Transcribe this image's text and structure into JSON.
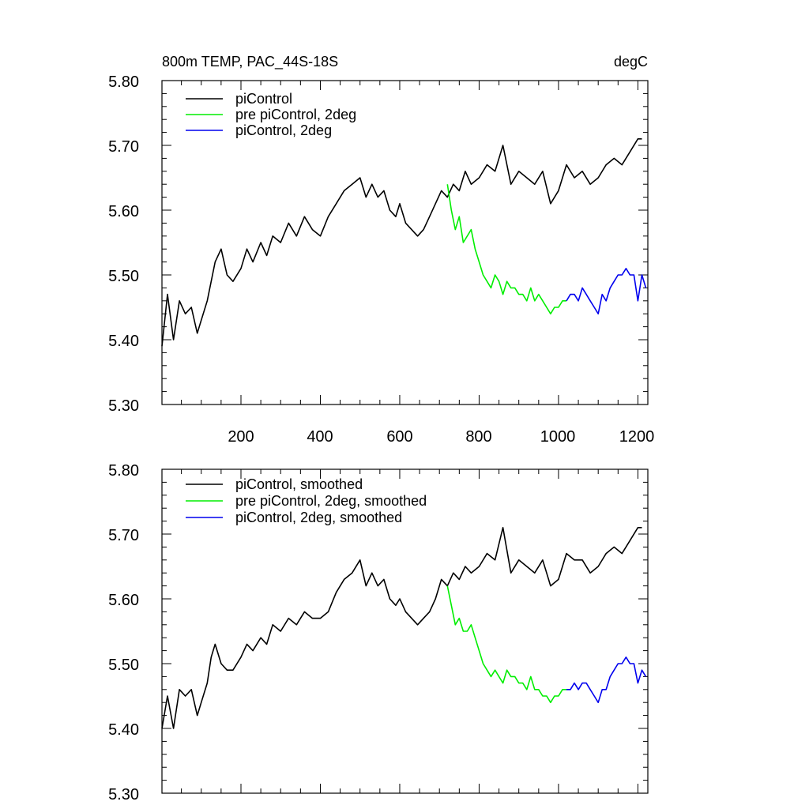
{
  "colors": {
    "series_1": "#000000",
    "series_2": "#00ee00",
    "series_3": "#0000ee"
  },
  "chart_data": [
    {
      "type": "line",
      "title": "800m TEMP, PAC_44S-18S",
      "units": "degC",
      "xlim": [
        1,
        1225
      ],
      "ylim": [
        5.3,
        5.8
      ],
      "y_ticks": [
        "5.30",
        "5.40",
        "5.50",
        "5.60",
        "5.70",
        "5.80"
      ],
      "x_ticks": [
        "200",
        "400",
        "600",
        "800",
        "1000",
        "1200"
      ],
      "legend_position": "top-left",
      "series": [
        {
          "name": "piControl",
          "color": "#000000",
          "x": [
            1,
            15,
            30,
            45,
            60,
            75,
            90,
            100,
            115,
            125,
            135,
            150,
            165,
            180,
            200,
            215,
            230,
            250,
            265,
            280,
            300,
            320,
            340,
            360,
            380,
            400,
            420,
            440,
            460,
            480,
            500,
            515,
            530,
            545,
            560,
            575,
            590,
            600,
            615,
            630,
            645,
            660,
            675,
            690,
            705,
            720,
            735,
            750,
            765,
            780,
            800,
            820,
            840,
            860,
            880,
            900,
            920,
            940,
            960,
            980,
            1000,
            1020,
            1040,
            1060,
            1080,
            1100,
            1120,
            1140,
            1160,
            1180,
            1200,
            1210
          ],
          "y": [
            5.39,
            5.47,
            5.4,
            5.46,
            5.44,
            5.45,
            5.41,
            5.43,
            5.46,
            5.49,
            5.52,
            5.54,
            5.5,
            5.49,
            5.51,
            5.54,
            5.52,
            5.55,
            5.53,
            5.56,
            5.55,
            5.58,
            5.56,
            5.59,
            5.57,
            5.56,
            5.59,
            5.61,
            5.63,
            5.64,
            5.65,
            5.62,
            5.64,
            5.62,
            5.63,
            5.6,
            5.59,
            5.61,
            5.58,
            5.57,
            5.56,
            5.57,
            5.59,
            5.61,
            5.63,
            5.62,
            5.64,
            5.63,
            5.66,
            5.64,
            5.65,
            5.67,
            5.66,
            5.7,
            5.64,
            5.66,
            5.65,
            5.64,
            5.66,
            5.61,
            5.63,
            5.67,
            5.65,
            5.66,
            5.64,
            5.65,
            5.67,
            5.68,
            5.67,
            5.69,
            5.71,
            5.71
          ]
        },
        {
          "name": "pre piControl, 2deg",
          "color": "#00ee00",
          "x": [
            720,
            730,
            740,
            750,
            760,
            770,
            780,
            790,
            800,
            810,
            820,
            830,
            840,
            850,
            860,
            870,
            880,
            890,
            900,
            910,
            920,
            930,
            940,
            950,
            960,
            970,
            980,
            990,
            1000,
            1010,
            1020
          ],
          "y": [
            5.64,
            5.6,
            5.57,
            5.59,
            5.55,
            5.56,
            5.57,
            5.54,
            5.52,
            5.5,
            5.49,
            5.48,
            5.5,
            5.49,
            5.47,
            5.49,
            5.48,
            5.48,
            5.47,
            5.47,
            5.46,
            5.48,
            5.46,
            5.47,
            5.46,
            5.45,
            5.44,
            5.45,
            5.45,
            5.46,
            5.46
          ]
        },
        {
          "name": "piControl, 2deg",
          "color": "#0000ee",
          "x": [
            1020,
            1030,
            1040,
            1050,
            1060,
            1070,
            1080,
            1090,
            1100,
            1110,
            1120,
            1130,
            1140,
            1150,
            1160,
            1170,
            1180,
            1190,
            1200,
            1210,
            1220
          ],
          "y": [
            5.46,
            5.47,
            5.47,
            5.46,
            5.48,
            5.47,
            5.46,
            5.45,
            5.44,
            5.47,
            5.46,
            5.48,
            5.49,
            5.5,
            5.5,
            5.51,
            5.5,
            5.5,
            5.46,
            5.5,
            5.48
          ]
        }
      ]
    },
    {
      "type": "line",
      "xlim": [
        1,
        1225
      ],
      "ylim": [
        5.3,
        5.8
      ],
      "y_ticks": [
        "5.30",
        "5.40",
        "5.50",
        "5.60",
        "5.70",
        "5.80"
      ],
      "legend_position": "top-left",
      "series": [
        {
          "name": "piControl, smoothed",
          "color": "#000000",
          "x": [
            1,
            15,
            30,
            45,
            60,
            75,
            90,
            100,
            115,
            125,
            135,
            150,
            165,
            180,
            200,
            215,
            230,
            250,
            265,
            280,
            300,
            320,
            340,
            360,
            380,
            400,
            420,
            440,
            460,
            480,
            500,
            515,
            530,
            545,
            560,
            575,
            590,
            600,
            615,
            630,
            645,
            660,
            675,
            690,
            705,
            720,
            735,
            750,
            765,
            780,
            800,
            820,
            840,
            860,
            880,
            900,
            920,
            940,
            960,
            980,
            1000,
            1020,
            1040,
            1060,
            1080,
            1100,
            1120,
            1140,
            1160,
            1180,
            1200,
            1210
          ],
          "y": [
            5.4,
            5.45,
            5.4,
            5.46,
            5.45,
            5.46,
            5.42,
            5.44,
            5.47,
            5.51,
            5.53,
            5.5,
            5.49,
            5.49,
            5.51,
            5.53,
            5.52,
            5.54,
            5.53,
            5.56,
            5.55,
            5.57,
            5.56,
            5.58,
            5.57,
            5.57,
            5.58,
            5.61,
            5.63,
            5.64,
            5.66,
            5.62,
            5.64,
            5.62,
            5.63,
            5.6,
            5.59,
            5.6,
            5.58,
            5.57,
            5.56,
            5.57,
            5.58,
            5.6,
            5.63,
            5.62,
            5.64,
            5.63,
            5.65,
            5.64,
            5.65,
            5.67,
            5.66,
            5.71,
            5.64,
            5.66,
            5.65,
            5.64,
            5.66,
            5.62,
            5.63,
            5.67,
            5.66,
            5.66,
            5.64,
            5.65,
            5.67,
            5.68,
            5.67,
            5.69,
            5.71,
            5.71
          ]
        },
        {
          "name": "pre piControl, 2deg, smoothed",
          "color": "#00ee00",
          "x": [
            720,
            730,
            740,
            750,
            760,
            770,
            780,
            790,
            800,
            810,
            820,
            830,
            840,
            850,
            860,
            870,
            880,
            890,
            900,
            910,
            920,
            930,
            940,
            950,
            960,
            970,
            980,
            990,
            1000,
            1010,
            1020
          ],
          "y": [
            5.62,
            5.59,
            5.56,
            5.57,
            5.55,
            5.55,
            5.56,
            5.54,
            5.52,
            5.5,
            5.49,
            5.48,
            5.49,
            5.48,
            5.47,
            5.49,
            5.48,
            5.48,
            5.47,
            5.47,
            5.46,
            5.48,
            5.46,
            5.46,
            5.45,
            5.45,
            5.44,
            5.45,
            5.45,
            5.46,
            5.46
          ]
        },
        {
          "name": "piControl, 2deg, smoothed",
          "color": "#0000ee",
          "x": [
            1020,
            1030,
            1040,
            1050,
            1060,
            1070,
            1080,
            1090,
            1100,
            1110,
            1120,
            1130,
            1140,
            1150,
            1160,
            1170,
            1180,
            1190,
            1200,
            1210,
            1220
          ],
          "y": [
            5.46,
            5.46,
            5.47,
            5.46,
            5.47,
            5.47,
            5.46,
            5.45,
            5.44,
            5.46,
            5.46,
            5.48,
            5.49,
            5.5,
            5.5,
            5.51,
            5.5,
            5.5,
            5.47,
            5.49,
            5.48
          ]
        }
      ]
    }
  ]
}
